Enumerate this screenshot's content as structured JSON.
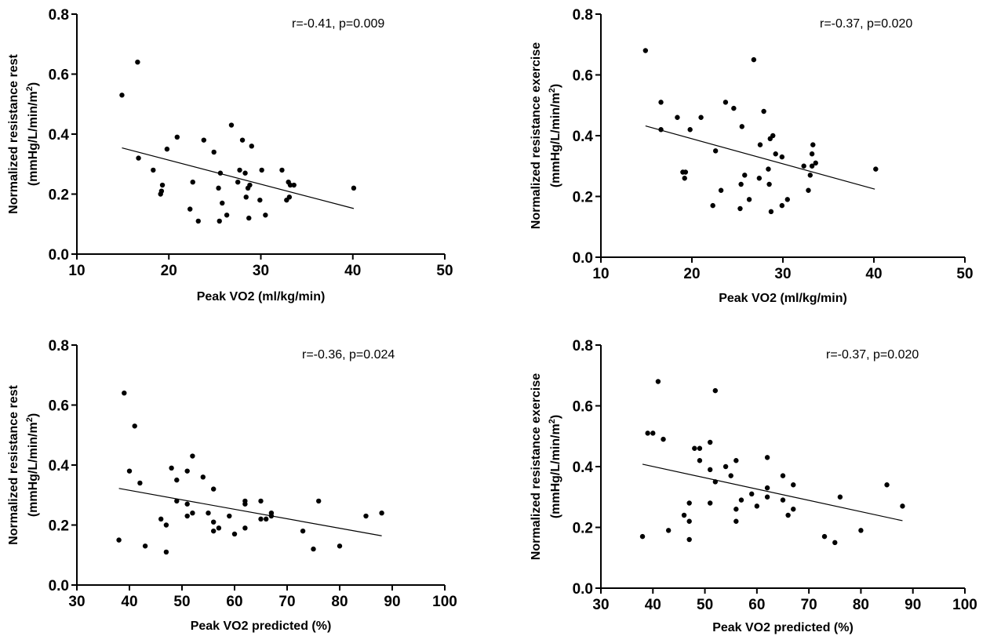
{
  "chart_data": [
    {
      "type": "scatter",
      "annotation": "r=-0.41, p=0.009",
      "xlabel": "Peak VO2 (ml/kg/min)",
      "ylabel_line1": "Normalized resistance rest",
      "ylabel_line2_main": "(mmHg/L/min/m",
      "ylabel_line2_sup": "2",
      "ylabel_line2_end": ")",
      "xlim": [
        10,
        50
      ],
      "ylim": [
        0,
        0.8
      ],
      "xticks": [
        10,
        20,
        30,
        40,
        50
      ],
      "yticks": [
        0.0,
        0.2,
        0.4,
        0.6,
        0.8
      ],
      "xtick_labels": [
        "10",
        "20",
        "30",
        "40",
        "50"
      ],
      "ytick_labels": [
        "0.0",
        "0.2",
        "0.4",
        "0.6",
        "0.8"
      ],
      "fit": {
        "x": [
          14.9,
          40.1
        ],
        "y": [
          0.354,
          0.152
        ]
      },
      "points": [
        [
          14.9,
          0.53
        ],
        [
          16.6,
          0.64
        ],
        [
          16.7,
          0.32
        ],
        [
          18.3,
          0.28
        ],
        [
          19.1,
          0.2
        ],
        [
          19.2,
          0.21
        ],
        [
          19.3,
          0.23
        ],
        [
          19.8,
          0.35
        ],
        [
          20.9,
          0.39
        ],
        [
          22.3,
          0.15
        ],
        [
          22.6,
          0.24
        ],
        [
          23.2,
          0.11
        ],
        [
          23.8,
          0.38
        ],
        [
          24.9,
          0.34
        ],
        [
          25.4,
          0.22
        ],
        [
          25.5,
          0.11
        ],
        [
          25.6,
          0.27
        ],
        [
          25.8,
          0.17
        ],
        [
          26.3,
          0.13
        ],
        [
          26.8,
          0.43
        ],
        [
          27.5,
          0.24
        ],
        [
          27.7,
          0.28
        ],
        [
          28.0,
          0.38
        ],
        [
          28.3,
          0.27
        ],
        [
          28.4,
          0.19
        ],
        [
          28.6,
          0.22
        ],
        [
          28.7,
          0.12
        ],
        [
          28.8,
          0.23
        ],
        [
          29.0,
          0.36
        ],
        [
          29.9,
          0.18
        ],
        [
          30.1,
          0.28
        ],
        [
          30.5,
          0.13
        ],
        [
          32.3,
          0.28
        ],
        [
          32.8,
          0.18
        ],
        [
          33.0,
          0.24
        ],
        [
          33.1,
          0.19
        ],
        [
          33.2,
          0.23
        ],
        [
          33.6,
          0.23
        ],
        [
          40.1,
          0.22
        ]
      ]
    },
    {
      "type": "scatter",
      "annotation": "r=-0.37, p=0.020",
      "xlabel": "Peak VO2 (ml/kg/min)",
      "ylabel_line1": "Normalized resistance exercise",
      "ylabel_line2_main": "(mmHg/L/min/m",
      "ylabel_line2_sup": "2",
      "ylabel_line2_end": ")",
      "xlim": [
        10,
        50
      ],
      "ylim": [
        0,
        0.8
      ],
      "xticks": [
        10,
        20,
        30,
        40,
        50
      ],
      "yticks": [
        0.0,
        0.2,
        0.4,
        0.6,
        0.8
      ],
      "xtick_labels": [
        "10",
        "20",
        "30",
        "40",
        "50"
      ],
      "ytick_labels": [
        "0.0",
        "0.2",
        "0.4",
        "0.6",
        "0.8"
      ],
      "fit": {
        "x": [
          14.9,
          40.1
        ],
        "y": [
          0.432,
          0.224
        ]
      },
      "points": [
        [
          14.9,
          0.68
        ],
        [
          16.6,
          0.51
        ],
        [
          16.6,
          0.42
        ],
        [
          18.4,
          0.46
        ],
        [
          19.0,
          0.28
        ],
        [
          19.2,
          0.26
        ],
        [
          19.3,
          0.28
        ],
        [
          19.8,
          0.42
        ],
        [
          21.0,
          0.46
        ],
        [
          22.3,
          0.17
        ],
        [
          22.6,
          0.35
        ],
        [
          23.2,
          0.22
        ],
        [
          23.7,
          0.51
        ],
        [
          24.6,
          0.49
        ],
        [
          25.3,
          0.16
        ],
        [
          25.4,
          0.24
        ],
        [
          25.5,
          0.43
        ],
        [
          25.8,
          0.27
        ],
        [
          26.3,
          0.19
        ],
        [
          26.8,
          0.65
        ],
        [
          27.4,
          0.26
        ],
        [
          27.5,
          0.37
        ],
        [
          27.9,
          0.48
        ],
        [
          28.4,
          0.29
        ],
        [
          28.5,
          0.24
        ],
        [
          28.6,
          0.39
        ],
        [
          28.7,
          0.15
        ],
        [
          28.9,
          0.4
        ],
        [
          29.2,
          0.34
        ],
        [
          29.9,
          0.17
        ],
        [
          29.9,
          0.33
        ],
        [
          30.5,
          0.19
        ],
        [
          32.3,
          0.3
        ],
        [
          32.8,
          0.22
        ],
        [
          33.0,
          0.27
        ],
        [
          33.2,
          0.3
        ],
        [
          33.2,
          0.34
        ],
        [
          33.3,
          0.37
        ],
        [
          33.6,
          0.31
        ],
        [
          40.2,
          0.29
        ]
      ]
    },
    {
      "type": "scatter",
      "annotation": "r=-0.36, p=0.024",
      "xlabel": "Peak VO2 predicted (%)",
      "ylabel_line1": "Normalized resistance rest",
      "ylabel_line2_main": "(mmHg/L/min/m",
      "ylabel_line2_sup": "2",
      "ylabel_line2_end": ")",
      "xlim": [
        30,
        100
      ],
      "ylim": [
        0,
        0.8
      ],
      "xticks": [
        30,
        40,
        50,
        60,
        70,
        80,
        90,
        100
      ],
      "yticks": [
        0.0,
        0.2,
        0.4,
        0.6,
        0.8
      ],
      "xtick_labels": [
        "30",
        "40",
        "50",
        "60",
        "70",
        "80",
        "90",
        "100"
      ],
      "ytick_labels": [
        "0.0",
        "0.2",
        "0.4",
        "0.6",
        "0.8"
      ],
      "fit": {
        "x": [
          38,
          88
        ],
        "y": [
          0.322,
          0.164
        ]
      },
      "points": [
        [
          38,
          0.15
        ],
        [
          39,
          0.64
        ],
        [
          40,
          0.38
        ],
        [
          41,
          0.53
        ],
        [
          42,
          0.34
        ],
        [
          43,
          0.13
        ],
        [
          46,
          0.22
        ],
        [
          47,
          0.2
        ],
        [
          47,
          0.11
        ],
        [
          48,
          0.39
        ],
        [
          49,
          0.35
        ],
        [
          49,
          0.28
        ],
        [
          51,
          0.38
        ],
        [
          51,
          0.27
        ],
        [
          51,
          0.23
        ],
        [
          52,
          0.43
        ],
        [
          52,
          0.24
        ],
        [
          54,
          0.36
        ],
        [
          55,
          0.24
        ],
        [
          56,
          0.32
        ],
        [
          56,
          0.21
        ],
        [
          56,
          0.18
        ],
        [
          57,
          0.19
        ],
        [
          59,
          0.23
        ],
        [
          60,
          0.17
        ],
        [
          62,
          0.28
        ],
        [
          62,
          0.27
        ],
        [
          62,
          0.19
        ],
        [
          65,
          0.28
        ],
        [
          65,
          0.22
        ],
        [
          66,
          0.22
        ],
        [
          67,
          0.24
        ],
        [
          67,
          0.23
        ],
        [
          73,
          0.18
        ],
        [
          75,
          0.12
        ],
        [
          76,
          0.28
        ],
        [
          80,
          0.13
        ],
        [
          85,
          0.23
        ],
        [
          88,
          0.24
        ]
      ]
    },
    {
      "type": "scatter",
      "annotation": "r=-0.37, p=0.020",
      "xlabel": "Peak VO2 predicted (%)",
      "ylabel_line1": "Normalized resistance exercise",
      "ylabel_line2_main": "(mmHg/L/min/m",
      "ylabel_line2_sup": "2",
      "ylabel_line2_end": ")",
      "xlim": [
        30,
        100
      ],
      "ylim": [
        0,
        0.8
      ],
      "xticks": [
        30,
        40,
        50,
        60,
        70,
        80,
        90,
        100
      ],
      "yticks": [
        0.0,
        0.2,
        0.4,
        0.6,
        0.8
      ],
      "xtick_labels": [
        "30",
        "40",
        "50",
        "60",
        "70",
        "80",
        "90",
        "100"
      ],
      "ytick_labels": [
        "0.0",
        "0.2",
        "0.4",
        "0.6",
        "0.8"
      ],
      "fit": {
        "x": [
          38,
          88
        ],
        "y": [
          0.408,
          0.222
        ]
      },
      "points": [
        [
          38,
          0.17
        ],
        [
          39,
          0.51
        ],
        [
          40,
          0.51
        ],
        [
          41,
          0.68
        ],
        [
          42,
          0.49
        ],
        [
          43,
          0.19
        ],
        [
          46,
          0.24
        ],
        [
          47,
          0.28
        ],
        [
          47,
          0.22
        ],
        [
          47,
          0.16
        ],
        [
          48,
          0.46
        ],
        [
          49,
          0.46
        ],
        [
          49,
          0.42
        ],
        [
          51,
          0.48
        ],
        [
          51,
          0.39
        ],
        [
          51,
          0.28
        ],
        [
          52,
          0.65
        ],
        [
          52,
          0.35
        ],
        [
          54,
          0.4
        ],
        [
          55,
          0.37
        ],
        [
          56,
          0.42
        ],
        [
          56,
          0.26
        ],
        [
          56,
          0.22
        ],
        [
          57,
          0.29
        ],
        [
          59,
          0.31
        ],
        [
          60,
          0.27
        ],
        [
          62,
          0.43
        ],
        [
          62,
          0.33
        ],
        [
          62,
          0.3
        ],
        [
          65,
          0.37
        ],
        [
          65,
          0.29
        ],
        [
          66,
          0.24
        ],
        [
          67,
          0.34
        ],
        [
          67,
          0.26
        ],
        [
          73,
          0.17
        ],
        [
          75,
          0.15
        ],
        [
          76,
          0.3
        ],
        [
          80,
          0.19
        ],
        [
          85,
          0.34
        ],
        [
          88,
          0.27
        ]
      ]
    }
  ]
}
